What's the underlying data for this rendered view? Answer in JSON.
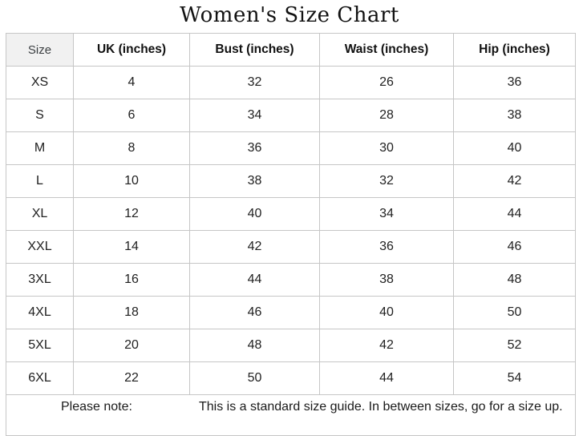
{
  "title": "Women's Size Chart",
  "chart_data": {
    "type": "table",
    "title": "Women's Size Chart",
    "columns": [
      "Size",
      "UK (inches)",
      "Bust (inches)",
      "Waist (inches)",
      "Hip (inches)"
    ],
    "rows": [
      [
        "XS",
        4,
        32,
        26,
        36
      ],
      [
        "S",
        6,
        34,
        28,
        38
      ],
      [
        "M",
        8,
        36,
        30,
        40
      ],
      [
        "L",
        10,
        38,
        32,
        42
      ],
      [
        "XL",
        12,
        40,
        34,
        44
      ],
      [
        "XXL",
        14,
        42,
        36,
        46
      ],
      [
        "3XL",
        16,
        44,
        38,
        48
      ],
      [
        "4XL",
        18,
        46,
        40,
        50
      ],
      [
        "5XL",
        20,
        48,
        42,
        52
      ],
      [
        "6XL",
        22,
        50,
        44,
        54
      ]
    ],
    "layout": {
      "grid": "full-borders",
      "header_row_bold": true,
      "size_header_bg": "#f1f1f1"
    }
  },
  "footer": {
    "label": "Please note:",
    "text": "This is a standard size guide. In between sizes, go for a size up.",
    "clipped": "true"
  },
  "colors": {
    "background": "#ffffff",
    "border": "#c6c6c6",
    "text": "#212121",
    "header_text": "#111111",
    "size_header_bg": "#f1f1f1"
  }
}
